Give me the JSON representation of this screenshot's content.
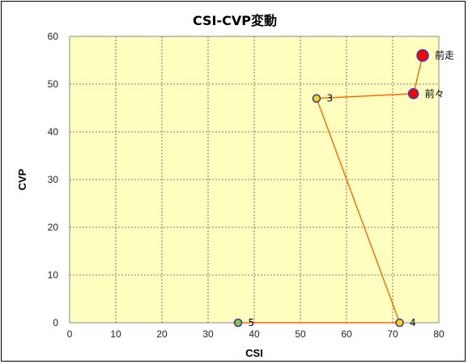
{
  "chart_data": {
    "type": "scatter",
    "title": "CSI-CVP変動",
    "xlabel": "CSI",
    "ylabel": "CVP",
    "xlim": [
      0,
      80
    ],
    "ylim": [
      0,
      60
    ],
    "xticks": [
      0,
      10,
      20,
      30,
      40,
      50,
      60,
      70,
      80
    ],
    "yticks": [
      0,
      10,
      20,
      30,
      40,
      50,
      60
    ],
    "grid": true,
    "line_color": "#ff6600",
    "plot_background": "#ffffc0",
    "points": [
      {
        "label": "5",
        "x": 36.5,
        "y": 0,
        "fill": "#8ec63f",
        "border": "#3a3ab0",
        "size": "small"
      },
      {
        "label": "4",
        "x": 71.5,
        "y": 0,
        "fill": "#ffd700",
        "border": "#3a3ab0",
        "size": "small"
      },
      {
        "label": "3",
        "x": 53.5,
        "y": 47,
        "fill": "#ffd700",
        "border": "#3a3ab0",
        "size": "small"
      },
      {
        "label": "前々",
        "x": 74.5,
        "y": 48,
        "fill": "#ff0000",
        "border": "#3a3ab0",
        "size": "medium"
      },
      {
        "label": "前走",
        "x": 76.5,
        "y": 56,
        "fill": "#ff0000",
        "border": "#3a3ab0",
        "size": "large"
      }
    ]
  }
}
